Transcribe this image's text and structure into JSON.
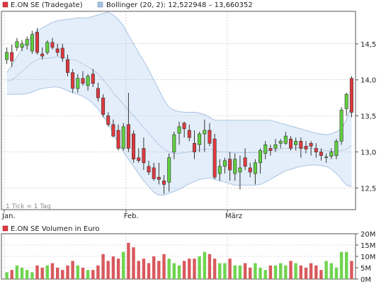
{
  "colors": {
    "up": "#5fcf3f",
    "down": "#e0393e",
    "band_fill": "#e3eefa",
    "band_line": "#a9c3e3",
    "axis": "#555555",
    "grid": "#b9b9b9",
    "vol_up": "#6fd44f",
    "vol_down": "#d9595d"
  },
  "chart_data": [
    {
      "type": "candlestick",
      "legend": [
        {
          "name": "E.ON SE (Tradegate)",
          "color": "#e0393e",
          "icon": "legend-square"
        },
        {
          "name": "Bollinger (20, 2): 12,522948 – 13,660352",
          "color": "#a9c3e3",
          "icon": "legend-square"
        }
      ],
      "note": "1 Tick = 1 Tag",
      "ylim": [
        12.2,
        14.95
      ],
      "y_ticks": [
        {
          "v": 14.5,
          "label": "14,5"
        },
        {
          "v": 14.0,
          "label": "14,0"
        },
        {
          "v": 13.5,
          "label": "13,5"
        },
        {
          "v": 13.0,
          "label": "13,0"
        },
        {
          "v": 12.5,
          "label": "12,5"
        }
      ],
      "x_ticks": [
        {
          "i": 0,
          "label": "Jan."
        },
        {
          "i": 24,
          "label": "Feb."
        },
        {
          "i": 44,
          "label": "März"
        }
      ],
      "candles": [
        [
          14.28,
          14.45,
          14.22,
          14.38
        ],
        [
          14.38,
          14.49,
          14.18,
          14.26
        ],
        [
          14.45,
          14.58,
          14.4,
          14.53
        ],
        [
          14.45,
          14.55,
          14.4,
          14.5
        ],
        [
          14.48,
          14.6,
          14.42,
          14.56
        ],
        [
          14.4,
          14.68,
          14.36,
          14.63
        ],
        [
          14.66,
          14.72,
          14.35,
          14.38
        ],
        [
          14.36,
          14.45,
          14.28,
          14.33
        ],
        [
          14.38,
          14.55,
          14.35,
          14.52
        ],
        [
          14.52,
          14.58,
          14.42,
          14.45
        ],
        [
          14.43,
          14.5,
          14.33,
          14.38
        ],
        [
          14.44,
          14.5,
          14.25,
          14.3
        ],
        [
          14.28,
          14.35,
          14.05,
          14.1
        ],
        [
          14.1,
          14.15,
          13.82,
          13.88
        ],
        [
          13.88,
          14.08,
          13.82,
          14.02
        ],
        [
          14.02,
          14.12,
          13.92,
          13.95
        ],
        [
          13.92,
          14.08,
          13.85,
          14.05
        ],
        [
          14.08,
          14.15,
          13.9,
          13.95
        ],
        [
          13.88,
          13.96,
          13.7,
          13.75
        ],
        [
          13.75,
          13.8,
          13.48,
          13.52
        ],
        [
          13.5,
          13.55,
          13.35,
          13.38
        ],
        [
          13.38,
          13.45,
          13.2,
          13.22
        ],
        [
          13.3,
          13.38,
          13.02,
          13.05
        ],
        [
          13.05,
          13.4,
          13.02,
          13.35
        ],
        [
          13.38,
          13.82,
          13.0,
          13.05
        ],
        [
          13.25,
          13.3,
          12.85,
          12.9
        ],
        [
          12.92,
          13.05,
          12.85,
          12.88
        ],
        [
          13.05,
          13.2,
          12.75,
          12.85
        ],
        [
          12.8,
          12.88,
          12.68,
          12.72
        ],
        [
          12.78,
          12.85,
          12.6,
          12.63
        ],
        [
          12.65,
          12.85,
          12.55,
          12.62
        ],
        [
          12.6,
          12.68,
          12.42,
          12.55
        ],
        [
          12.58,
          12.98,
          12.45,
          12.92
        ],
        [
          13.0,
          13.28,
          12.9,
          13.24
        ],
        [
          13.26,
          13.42,
          13.1,
          13.35
        ],
        [
          13.4,
          13.42,
          13.2,
          13.32
        ],
        [
          13.3,
          13.38,
          13.15,
          13.2
        ],
        [
          13.12,
          13.3,
          12.9,
          13.0
        ],
        [
          13.1,
          13.28,
          13.0,
          13.25
        ],
        [
          13.25,
          13.45,
          13.0,
          13.3
        ],
        [
          13.3,
          13.4,
          13.08,
          13.12
        ],
        [
          13.18,
          13.25,
          12.62,
          12.65
        ],
        [
          12.7,
          12.9,
          12.6,
          12.8
        ],
        [
          12.8,
          12.92,
          12.7,
          12.88
        ],
        [
          12.9,
          13.0,
          12.6,
          12.75
        ],
        [
          12.7,
          12.98,
          12.6,
          12.9
        ],
        [
          12.72,
          12.95,
          12.48,
          12.78
        ],
        [
          12.92,
          13.05,
          12.75,
          12.8
        ],
        [
          12.78,
          12.85,
          12.65,
          12.72
        ],
        [
          12.7,
          12.9,
          12.55,
          12.85
        ],
        [
          12.85,
          13.05,
          12.7,
          13.02
        ],
        [
          12.98,
          13.15,
          12.9,
          13.1
        ],
        [
          13.05,
          13.1,
          12.95,
          13.02
        ],
        [
          13.05,
          13.18,
          13.0,
          13.1
        ],
        [
          13.12,
          13.18,
          13.05,
          13.15
        ],
        [
          13.12,
          13.28,
          13.1,
          13.22
        ],
        [
          13.18,
          13.22,
          13.02,
          13.05
        ],
        [
          13.1,
          13.2,
          13.02,
          13.15
        ],
        [
          13.15,
          13.2,
          12.92,
          13.05
        ],
        [
          13.08,
          13.15,
          12.98,
          13.04
        ],
        [
          13.12,
          13.15,
          12.95,
          13.08
        ],
        [
          13.05,
          13.12,
          12.92,
          13.0
        ],
        [
          13.0,
          13.05,
          12.88,
          12.95
        ],
        [
          12.92,
          12.98,
          12.85,
          12.93
        ],
        [
          12.94,
          13.05,
          12.9,
          13.0
        ],
        [
          12.95,
          13.18,
          12.9,
          13.15
        ],
        [
          13.15,
          13.62,
          13.1,
          13.58
        ],
        [
          13.6,
          13.82,
          13.5,
          13.8
        ],
        [
          14.02,
          14.05,
          13.48,
          13.55
        ]
      ],
      "bollinger_upper": [
        14.1,
        14.2,
        14.32,
        14.43,
        14.53,
        14.62,
        14.68,
        14.72,
        14.76,
        14.8,
        14.82,
        14.83,
        14.84,
        14.85,
        14.86,
        14.86,
        14.86,
        14.88,
        14.9,
        14.92,
        14.94,
        14.9,
        14.84,
        14.75,
        14.62,
        14.5,
        14.38,
        14.26,
        14.14,
        14.0,
        13.86,
        13.72,
        13.62,
        13.58,
        13.56,
        13.55,
        13.55,
        13.55,
        13.54,
        13.52,
        13.48,
        13.44,
        13.44,
        13.44,
        13.44,
        13.44,
        13.44,
        13.44,
        13.44,
        13.44,
        13.44,
        13.44,
        13.44,
        13.42,
        13.4,
        13.38,
        13.36,
        13.34,
        13.32,
        13.3,
        13.28,
        13.26,
        13.25,
        13.24,
        13.25,
        13.28,
        13.32,
        13.45,
        13.66
      ],
      "bollinger_lower": [
        13.8,
        13.8,
        13.8,
        13.8,
        13.81,
        13.83,
        13.86,
        13.88,
        13.89,
        13.9,
        13.9,
        13.88,
        13.85,
        13.82,
        13.8,
        13.77,
        13.73,
        13.67,
        13.6,
        13.5,
        13.4,
        13.25,
        13.12,
        13.0,
        12.9,
        12.8,
        12.7,
        12.6,
        12.52,
        12.44,
        12.4,
        12.4,
        12.43,
        12.45,
        12.48,
        12.52,
        12.56,
        12.59,
        12.62,
        12.63,
        12.64,
        12.62,
        12.6,
        12.58,
        12.56,
        12.54,
        12.54,
        12.54,
        12.54,
        12.54,
        12.55,
        12.58,
        12.62,
        12.66,
        12.7,
        12.74,
        12.76,
        12.78,
        12.8,
        12.81,
        12.82,
        12.82,
        12.81,
        12.8,
        12.76,
        12.7,
        12.62,
        12.54,
        12.52
      ],
      "bollinger_middle": [
        13.98,
        14.0,
        14.05,
        14.12,
        14.18,
        14.24,
        14.28,
        14.3,
        14.3,
        14.31,
        14.32,
        14.32,
        14.3,
        14.28,
        14.26,
        14.22,
        14.18,
        14.14,
        14.08,
        14.0,
        13.92,
        13.82,
        13.74,
        13.66,
        13.58,
        13.5,
        13.42,
        13.34,
        13.26,
        13.18,
        13.1,
        13.04,
        13.0,
        12.98,
        12.98,
        12.99,
        13.0,
        13.02,
        13.03,
        13.04,
        13.04,
        13.02,
        13.0,
        13.0,
        12.99,
        12.99,
        12.99,
        12.99,
        12.99,
        12.99,
        13.0,
        13.01,
        13.02,
        13.03,
        13.04,
        13.05,
        13.05,
        13.06,
        13.06,
        13.06,
        13.05,
        13.04,
        13.03,
        13.02,
        13.01,
        13.01,
        13.02,
        13.04,
        13.09
      ]
    },
    {
      "type": "bar",
      "legend": [
        {
          "name": "E.ON SE Volumen in Euro",
          "color": "#e0393e",
          "icon": "legend-square"
        }
      ],
      "ylim": [
        0,
        20
      ],
      "y_ticks": [
        {
          "v": 20,
          "label": "20M"
        },
        {
          "v": 15,
          "label": "15M"
        },
        {
          "v": 10,
          "label": "10M"
        },
        {
          "v": 5,
          "label": "5M"
        },
        {
          "v": 0,
          "label": "0M"
        }
      ],
      "values": [
        3,
        4,
        6,
        5,
        4,
        3,
        6,
        5,
        6,
        7,
        5,
        4,
        6,
        8,
        6,
        5,
        4,
        4,
        6,
        11,
        8,
        10,
        9,
        12,
        16,
        14,
        8,
        9,
        7,
        10,
        8,
        11,
        9,
        7,
        6,
        8,
        9,
        9,
        10,
        12,
        11,
        9,
        7,
        7,
        9,
        6,
        6,
        7,
        5,
        7,
        5,
        4,
        6,
        6,
        7,
        6,
        8,
        7,
        6,
        5,
        7,
        6,
        4,
        8,
        7,
        5,
        12,
        12,
        8
      ]
    }
  ]
}
